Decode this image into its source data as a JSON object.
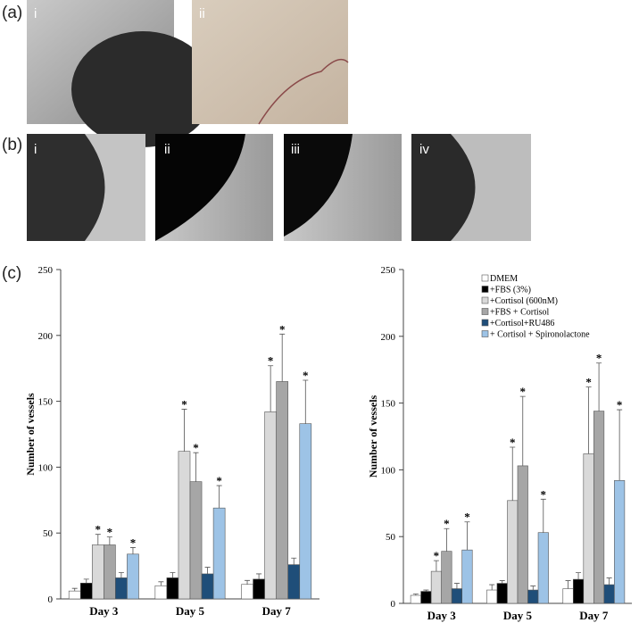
{
  "panels": {
    "a": {
      "label": "(a)",
      "images": [
        "i",
        "ii"
      ]
    },
    "b": {
      "label": "(b)",
      "images": [
        "i",
        "ii",
        "iii",
        "iv"
      ]
    },
    "c": {
      "label": "(c)"
    }
  },
  "chart_data": [
    {
      "type": "bar",
      "ylabel": "Number of vessels",
      "categories": [
        "Day 3",
        "Day 5",
        "Day 7"
      ],
      "ylim": [
        0,
        250
      ],
      "yticks": [
        0,
        50,
        100,
        150,
        200,
        250
      ],
      "series": [
        {
          "name": "DMEM",
          "color": "#ffffff",
          "values": [
            6,
            10,
            11
          ],
          "errors": [
            2,
            3,
            3
          ]
        },
        {
          "name": "+FBS (3%)",
          "color": "#000000",
          "values": [
            12,
            16,
            15
          ],
          "errors": [
            3,
            4,
            4
          ]
        },
        {
          "name": "+Cortisol (600nM)",
          "color": "#d9d9d9",
          "values": [
            41,
            112,
            142
          ],
          "errors": [
            8,
            32,
            35
          ],
          "annotation": "*"
        },
        {
          "name": "+FBS + Cortisol",
          "color": "#a6a6a6",
          "values": [
            41,
            89,
            165
          ],
          "errors": [
            6,
            22,
            36
          ],
          "annotation": "*"
        },
        {
          "name": "+Cortisol+RU486",
          "color": "#1f4e79",
          "values": [
            16,
            19,
            26
          ],
          "errors": [
            4,
            5,
            5
          ]
        },
        {
          "name": "+ Cortisol + Spironolactone",
          "color": "#9dc3e6",
          "values": [
            34,
            69,
            133
          ],
          "errors": [
            5,
            17,
            33
          ],
          "annotation": "*"
        }
      ]
    },
    {
      "type": "bar",
      "ylabel": "Number of vessels",
      "legend": "upper right",
      "categories": [
        "Day 3",
        "Day 5",
        "Day 7"
      ],
      "ylim": [
        0,
        250
      ],
      "yticks": [
        0,
        50,
        100,
        150,
        200,
        250
      ],
      "series": [
        {
          "name": "DMEM",
          "color": "#ffffff",
          "values": [
            6,
            10,
            11
          ],
          "errors": [
            1,
            4,
            6
          ]
        },
        {
          "name": "+FBS (3%)",
          "color": "#000000",
          "values": [
            9,
            15,
            18
          ],
          "errors": [
            1,
            2,
            5
          ]
        },
        {
          "name": "+Cortisol (600nM)",
          "color": "#d9d9d9",
          "values": [
            24,
            77,
            112
          ],
          "errors": [
            8,
            40,
            50
          ],
          "annotation": "*"
        },
        {
          "name": "+FBS + Cortisol",
          "color": "#a6a6a6",
          "values": [
            39,
            103,
            144
          ],
          "errors": [
            17,
            52,
            36
          ],
          "annotation": "*"
        },
        {
          "name": "+Cortisol+RU486",
          "color": "#1f4e79",
          "values": [
            11,
            10,
            14
          ],
          "errors": [
            4,
            3,
            5
          ]
        },
        {
          "name": "+ Cortisol + Spironolactone",
          "color": "#9dc3e6",
          "values": [
            40,
            53,
            92
          ],
          "errors": [
            21,
            25,
            53
          ],
          "annotation": "*"
        }
      ]
    }
  ]
}
